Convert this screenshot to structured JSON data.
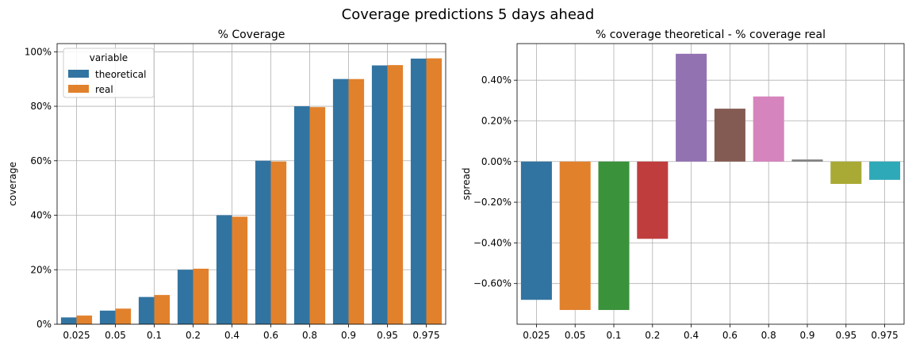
{
  "suptitle": "Coverage predictions 5 days ahead",
  "chart_data": [
    {
      "type": "bar",
      "title": "% Coverage",
      "xlabel": "",
      "ylabel": "coverage",
      "categories": [
        "0.025",
        "0.05",
        "0.1",
        "0.2",
        "0.4",
        "0.6",
        "0.8",
        "0.9",
        "0.95",
        "0.975"
      ],
      "series": [
        {
          "name": "theoretical",
          "color": "#3274a1",
          "values": [
            0.025,
            0.05,
            0.1,
            0.2,
            0.4,
            0.6,
            0.8,
            0.9,
            0.95,
            0.975
          ]
        },
        {
          "name": "real",
          "color": "#e1812c",
          "values": [
            0.0318,
            0.0573,
            0.1073,
            0.2038,
            0.3947,
            0.5974,
            0.7968,
            0.8999,
            0.9511,
            0.9759
          ]
        }
      ],
      "ylim": [
        0,
        1.03
      ],
      "yticks": [
        0,
        0.2,
        0.4,
        0.6,
        0.8,
        1.0
      ],
      "ytick_labels": [
        "0%",
        "20%",
        "40%",
        "60%",
        "80%",
        "100%"
      ],
      "grid": true,
      "legend": {
        "title": "variable",
        "placement": "top-left"
      }
    },
    {
      "type": "bar",
      "title": "% coverage theoretical - % coverage real",
      "xlabel": "",
      "ylabel": "spread",
      "categories": [
        "0.025",
        "0.05",
        "0.1",
        "0.2",
        "0.4",
        "0.6",
        "0.8",
        "0.9",
        "0.95",
        "0.975"
      ],
      "values": [
        -0.0068,
        -0.0073,
        -0.0073,
        -0.0038,
        0.0053,
        0.0026,
        0.0032,
        0.0001,
        -0.0011,
        -0.0009
      ],
      "colors": [
        "#3274a1",
        "#e1812c",
        "#3a923a",
        "#c03d3e",
        "#9372b2",
        "#845b53",
        "#d684bd",
        "#7f7f7f",
        "#a9aa35",
        "#2ea9b8"
      ],
      "ylim": [
        -0.008,
        0.0058
      ],
      "yticks": [
        -0.006,
        -0.004,
        -0.002,
        0,
        0.002,
        0.004
      ],
      "ytick_labels": [
        "−0.60%",
        "−0.40%",
        "−0.20%",
        "0.00%",
        "0.20%",
        "0.40%"
      ],
      "grid": true
    }
  ]
}
